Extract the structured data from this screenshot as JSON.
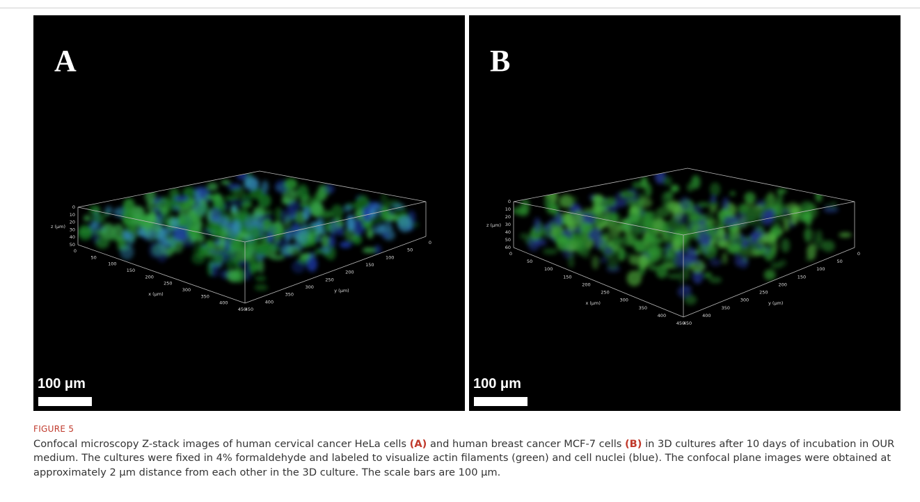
{
  "panels": [
    {
      "label": "A",
      "scale_bar": "100 μm",
      "z_label": "z (μm)",
      "x_label": "x (μm)",
      "y_label": "y (μm)",
      "z_ticks": [
        0,
        10,
        20,
        30,
        40,
        50
      ],
      "x_ticks": [
        0,
        50,
        100,
        150,
        200,
        250,
        300,
        350,
        400,
        450
      ],
      "y_ticks": [
        0,
        50,
        100,
        150,
        200,
        250,
        300,
        350,
        400,
        450
      ]
    },
    {
      "label": "B",
      "scale_bar": "100 μm",
      "z_label": "z (μm)",
      "x_label": "x (μm)",
      "y_label": "y (μm)",
      "z_ticks": [
        0,
        10,
        20,
        30,
        40,
        50,
        60
      ],
      "x_ticks": [
        0,
        50,
        100,
        150,
        200,
        250,
        300,
        350,
        400,
        450
      ],
      "y_ticks": [
        0,
        50,
        100,
        150,
        200,
        250,
        300,
        350,
        400,
        450
      ]
    }
  ],
  "figure_label": "FIGURE 5",
  "caption": [
    "Confocal microscopy Z-stack images of human cervical cancer HeLa cells ",
    "(A)",
    " and human breast cancer MCF-7 cells ",
    "(B)",
    " in 3D cultures after 10 days of incubation in OUR medium. The cultures were fixed in 4% formaldehyde and labeled to visualize actin filaments (green) and cell nuclei (blue). The confocal plane images were obtained at approximately 2 μm distance from each other in the 3D culture. The scale bars are 100 μm."
  ]
}
